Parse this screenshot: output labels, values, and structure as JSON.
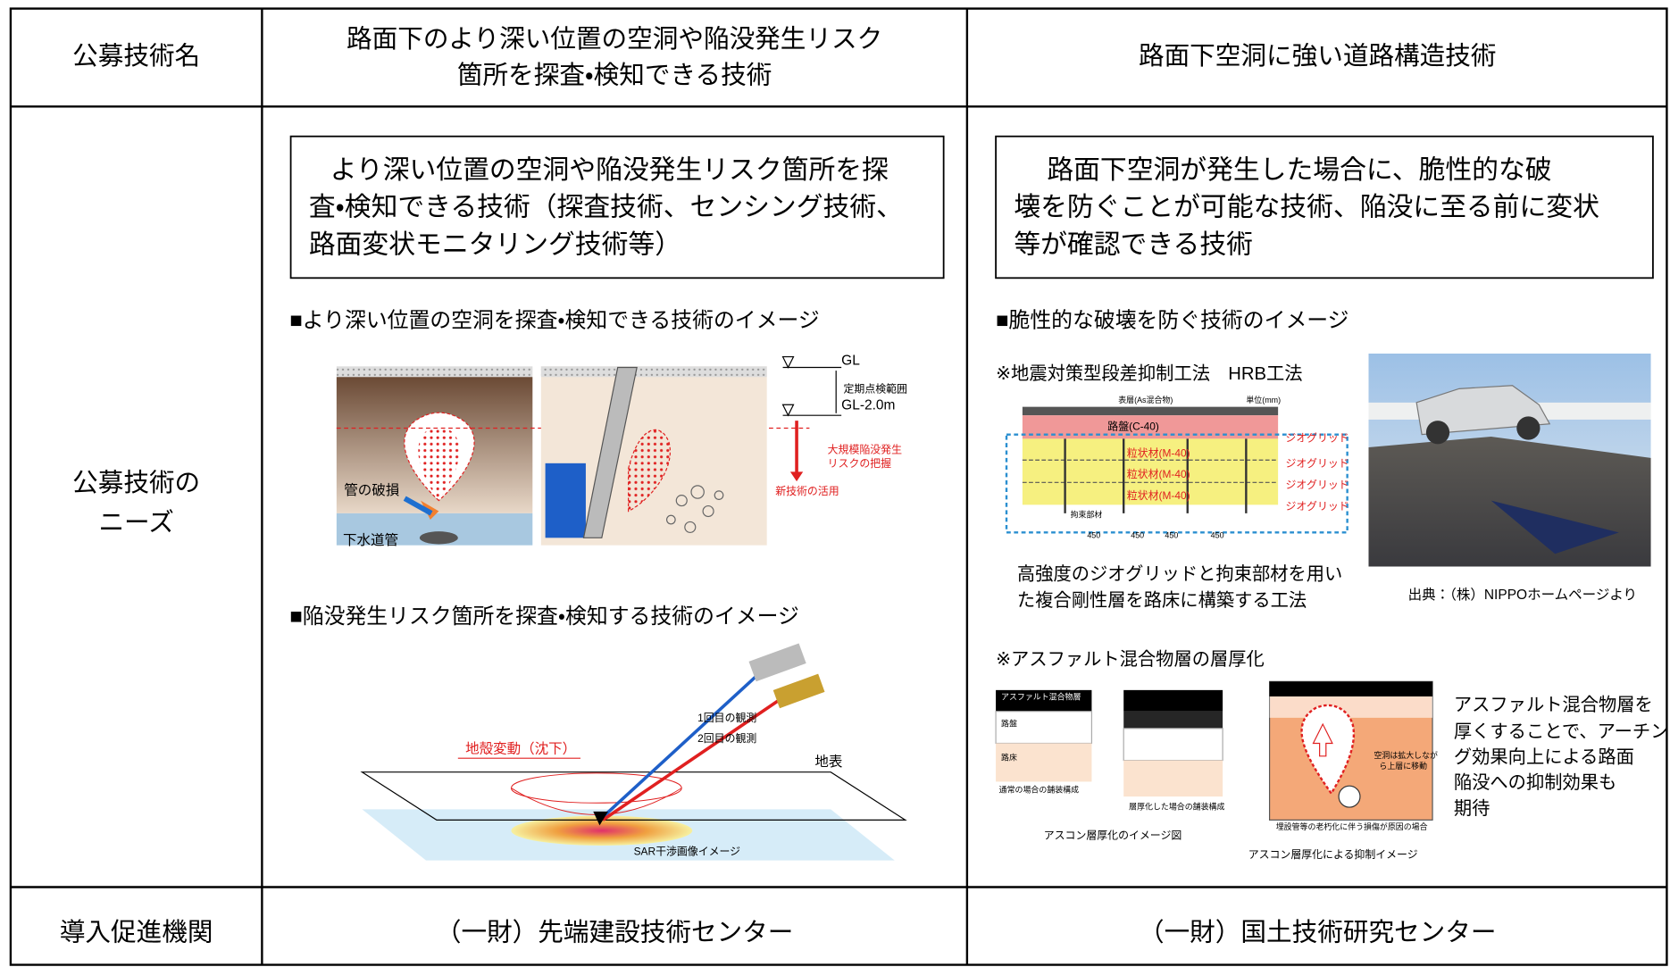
{
  "header": {
    "label": "公募技術名",
    "col1": [
      "路面下のより深い位置の空洞や陥没発生リスク",
      "箇所を探査・検知できる技術"
    ],
    "col2": "路面下空洞に強い道路構造技術"
  },
  "needs": {
    "label": [
      "公募技術の",
      "ニーズ"
    ],
    "left": {
      "summary": [
        "より深い位置の空洞や陥没発生リスク箇所を探",
        "査・検知できる技術（探査技術、センシング技術、",
        "路面変状モニタリング技術等）"
      ],
      "section1": "■より深い位置の空洞を探査・検知できる技術のイメージ",
      "fig1": {
        "pipe_damage": "管の破損",
        "sewer": "下水道管",
        "gl": "GL",
        "range": "定期点検範囲",
        "gl2": "GL-2.0m",
        "risk": [
          "大規模陥没発生",
          "リスクの把握"
        ],
        "new_tech": "新技術の活用"
      },
      "section2": "■陥没発生リスク箇所を探査・検知する技術のイメージ",
      "fig2": {
        "obs1": "1回目の観測",
        "obs2": "2回目の観測",
        "subsidence": "地殻変動（沈下）",
        "surface": "地表",
        "caption": "SAR干渉画像イメージ"
      }
    },
    "right": {
      "summary": [
        "路面下空洞が発生した場合に、脆性的な破",
        "壊を防ぐことが可能な技術、陥没に至る前に変状",
        "等が確認できる技術"
      ],
      "section": "■脆性的な破壊を防ぐ技術のイメージ",
      "hrb": {
        "title": "※地震対策型段差抑制工法　HRB工法",
        "surface": "表層(As混合物)",
        "unit": "単位(mm)",
        "base": "路盤(C-40)",
        "granular": [
          "粒状材(M-40)",
          "粒状材(M-40)",
          "粒状材(M-40)"
        ],
        "geogrid": [
          "ジオグリッド",
          "ジオグリッド",
          "ジオグリッド",
          "ジオグリッド"
        ],
        "member": "拘束部材",
        "spacing": [
          "450",
          "450",
          "450",
          "450"
        ],
        "caption": [
          "高強度のジオグリッドと拘束部材を用い",
          "た複合剛性層を路床に構築する工法"
        ],
        "source": "出典：（株）NIPPOホームページより"
      },
      "asphalt": {
        "title": "※アスファルト混合物層の層厚化",
        "layer": "アスファルト混合物層",
        "roadbed": "路盤",
        "subgrade": "路床",
        "normal": "通常の場合の舗装構成",
        "thick": "層厚化した場合の舗装構成",
        "fig_caption1": "アスコン層厚化のイメージ図",
        "cavity": [
          "空洞は拡大しなが",
          "ら上層に移動"
        ],
        "cause": "埋設管等の老朽化に伴う損傷が原因の場合",
        "fig_caption2": "アスコン層厚化による抑制イメージ",
        "note": [
          "アスファルト混合物層を",
          "厚くすることで、アーチン",
          "グ効果向上による路面",
          "陥没への抑制効果も",
          "期待"
        ]
      }
    }
  },
  "footer": {
    "label": "導入促進機関",
    "col1": "（一財）先端建設技術センター",
    "col2": "（一財）国土技術研究センター"
  }
}
